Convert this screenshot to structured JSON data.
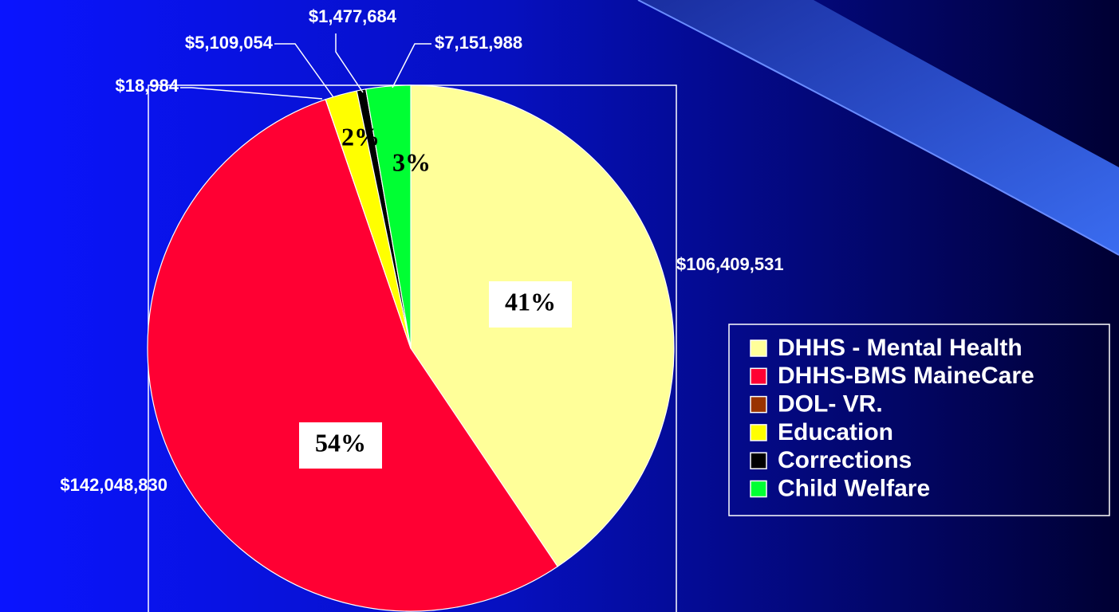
{
  "chart_data": {
    "type": "pie",
    "categories": [
      "DHHS - Mental Health",
      "DHHS-BMS MaineCare",
      "DOL- VR.",
      "Education",
      "Corrections",
      "Child Welfare"
    ],
    "values": [
      106409531,
      142048830,
      18984,
      5109054,
      1477684,
      7151988
    ],
    "value_labels": [
      "$106,409,531",
      "$142,048,830",
      "$18,984",
      "$5,109,054",
      "$1,477,684",
      "$7,151,988"
    ],
    "percent_labels": [
      "41%",
      "54%",
      null,
      "2%",
      null,
      "3%"
    ],
    "colors": [
      "#ffff99",
      "#ff0033",
      "#993300",
      "#ffff00",
      "#000000",
      "#00ff33"
    ],
    "legend": "right"
  }
}
